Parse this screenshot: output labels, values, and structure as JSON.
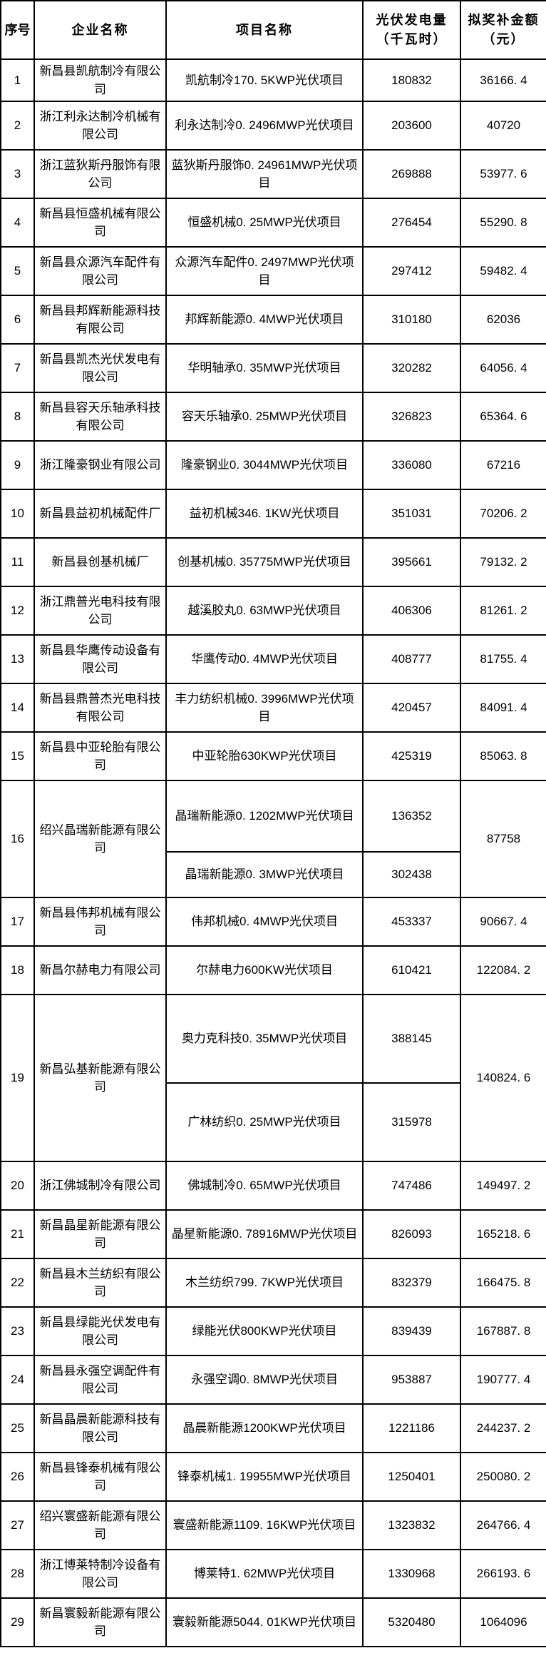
{
  "page": {
    "background_color": "#ffffff",
    "grid_color": "#000000",
    "text_color": "#000000"
  },
  "table": {
    "columns": {
      "index": "序号",
      "company": "企业名称",
      "project": "项目名称",
      "generation": "光伏发电量\n（千瓦时）",
      "subsidy": "拟奖补金额\n（元）"
    },
    "rows": [
      {
        "no": "1",
        "company": "新昌县凯航制冷有限公司",
        "projects": [
          {
            "name": "凯航制冷170. 5KWP光伏项目",
            "generation": "180832"
          }
        ],
        "subsidy": "36166. 4"
      },
      {
        "no": "2",
        "company": "浙江利永达制冷机械有限公司",
        "projects": [
          {
            "name": "利永达制冷0. 2496MWP光伏项目",
            "generation": "203600"
          }
        ],
        "subsidy": "40720"
      },
      {
        "no": "3",
        "company": "浙江蓝狄斯丹服饰有限公司",
        "projects": [
          {
            "name": "蓝狄斯丹服饰0. 24961MWP光伏项目",
            "generation": "269888"
          }
        ],
        "subsidy": "53977. 6"
      },
      {
        "no": "4",
        "company": "新昌县恒盛机械有限公司",
        "projects": [
          {
            "name": "恒盛机械0. 25MWP光伏项目",
            "generation": "276454"
          }
        ],
        "subsidy": "55290. 8"
      },
      {
        "no": "5",
        "company": "新昌县众源汽车配件有限公司",
        "projects": [
          {
            "name": "众源汽车配件0. 2497MWP光伏项目",
            "generation": "297412"
          }
        ],
        "subsidy": "59482. 4"
      },
      {
        "no": "6",
        "company": "新昌县邦辉新能源科技有限公司",
        "projects": [
          {
            "name": "邦辉新能源0. 4MWP光伏项目",
            "generation": "310180"
          }
        ],
        "subsidy": "62036"
      },
      {
        "no": "7",
        "company": "新昌县凯杰光伏发电有限公司",
        "projects": [
          {
            "name": "华明轴承0. 35MWP光伏项目",
            "generation": "320282"
          }
        ],
        "subsidy": "64056. 4"
      },
      {
        "no": "8",
        "company": "新昌县容天乐轴承科技有限公司",
        "projects": [
          {
            "name": "容天乐轴承0. 25MWP光伏项目",
            "generation": "326823"
          }
        ],
        "subsidy": "65364. 6"
      },
      {
        "no": "9",
        "company": "浙江隆豪钢业有限公司",
        "projects": [
          {
            "name": "隆豪钢业0. 3044MWP光伏项目",
            "generation": "336080"
          }
        ],
        "subsidy": "67216"
      },
      {
        "no": "10",
        "company": "新昌县益初机械配件厂",
        "projects": [
          {
            "name": "益初机械346. 1KW光伏项目",
            "generation": "351031"
          }
        ],
        "subsidy": "70206. 2"
      },
      {
        "no": "11",
        "company": "新昌县创基机械厂",
        "projects": [
          {
            "name": "创基机械0. 35775MWP光伏项目",
            "generation": "395661"
          }
        ],
        "subsidy": "79132. 2"
      },
      {
        "no": "12",
        "company": "浙江鼎普光电科技有限公司",
        "projects": [
          {
            "name": "越溪胶丸0. 63MWP光伏项目",
            "generation": "406306"
          }
        ],
        "subsidy": "81261. 2"
      },
      {
        "no": "13",
        "company": "新昌县华鹰传动设备有限公司",
        "projects": [
          {
            "name": "华鹰传动0. 4MWP光伏项目",
            "generation": "408777"
          }
        ],
        "subsidy": "81755. 4"
      },
      {
        "no": "14",
        "company": "新昌县鼎普杰光电科技有限公司",
        "projects": [
          {
            "name": "丰力纺织机械0. 3996MWP光伏项目",
            "generation": "420457"
          }
        ],
        "subsidy": "84091. 4"
      },
      {
        "no": "15",
        "company": "新昌县中亚轮胎有限公司",
        "projects": [
          {
            "name": "中亚轮胎630KWP光伏项目",
            "generation": "425319"
          }
        ],
        "subsidy": "85063. 8"
      },
      {
        "no": "16",
        "company": "绍兴晶瑞新能源有限公司",
        "projects": [
          {
            "name": "晶瑞新能源0. 1202MWP光伏项目",
            "generation": "136352"
          },
          {
            "name": "晶瑞新能源0. 3MWP光伏项目",
            "generation": "302438"
          }
        ],
        "subsidy": "87758"
      },
      {
        "no": "17",
        "company": "新昌县伟邦机械有限公司",
        "projects": [
          {
            "name": "伟邦机械0. 4MWP光伏项目",
            "generation": "453337"
          }
        ],
        "subsidy": "90667. 4"
      },
      {
        "no": "18",
        "company": "新昌尔赫电力有限公司",
        "projects": [
          {
            "name": "尔赫电力600KW光伏项目",
            "generation": "610421"
          }
        ],
        "subsidy": "122084. 2"
      },
      {
        "no": "19",
        "company": "新昌弘基新能源有限公司",
        "projects": [
          {
            "name": "奥力克科技0. 35MWP光伏项目",
            "generation": "388145"
          },
          {
            "name": "广林纺织0. 25MWP光伏项目",
            "generation": "315978"
          }
        ],
        "subsidy": "140824. 6"
      },
      {
        "no": "20",
        "company": "浙江佛城制冷有限公司",
        "projects": [
          {
            "name": "佛城制冷0. 65MWP光伏项目",
            "generation": "747486"
          }
        ],
        "subsidy": "149497. 2"
      },
      {
        "no": "21",
        "company": "新昌晶星新能源有限公司",
        "projects": [
          {
            "name": "晶星新能源0. 78916MWP光伏项目",
            "generation": "826093"
          }
        ],
        "subsidy": "165218. 6"
      },
      {
        "no": "22",
        "company": "新昌县木兰纺织有限公司",
        "projects": [
          {
            "name": "木兰纺织799. 7KWP光伏项目",
            "generation": "832379"
          }
        ],
        "subsidy": "166475. 8"
      },
      {
        "no": "23",
        "company": "新昌县绿能光伏发电有限公司",
        "projects": [
          {
            "name": "绿能光伏800KWP光伏项目",
            "generation": "839439"
          }
        ],
        "subsidy": "167887. 8"
      },
      {
        "no": "24",
        "company": "新昌县永强空调配件有限公司",
        "projects": [
          {
            "name": "永强空调0. 8MWP光伏项目",
            "generation": "953887"
          }
        ],
        "subsidy": "190777. 4"
      },
      {
        "no": "25",
        "company": "新昌晶晨新能源科技有限公司",
        "projects": [
          {
            "name": "晶晨新能源1200KWP光伏项目",
            "generation": "1221186"
          }
        ],
        "subsidy": "244237. 2"
      },
      {
        "no": "26",
        "company": "新昌县锋泰机械有限公司",
        "projects": [
          {
            "name": "锋泰机械1. 19955MWP光伏项目",
            "generation": "1250401"
          }
        ],
        "subsidy": "250080. 2"
      },
      {
        "no": "27",
        "company": "绍兴寰盛新能源有限公司",
        "projects": [
          {
            "name": "寰盛新能源1109. 16KWP光伏项目",
            "generation": "1323832"
          }
        ],
        "subsidy": "264766. 4"
      },
      {
        "no": "28",
        "company": "浙江博莱特制冷设备有限公司",
        "projects": [
          {
            "name": "博莱特1. 62MWP光伏项目",
            "generation": "1330968"
          }
        ],
        "subsidy": "266193. 6"
      },
      {
        "no": "29",
        "company": "新昌寰毅新能源有限公司",
        "projects": [
          {
            "name": "寰毅新能源5044. 01KWP光伏项目",
            "generation": "5320480"
          }
        ],
        "subsidy": "1064096"
      }
    ]
  }
}
